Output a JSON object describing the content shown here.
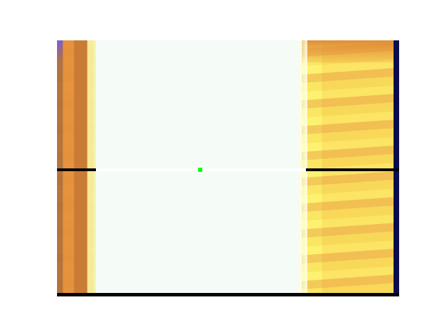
{
  "screen": {
    "background": "#ffffff",
    "image_colors": {
      "left_panel": "#c98232",
      "center_panel": "#f5fbf7",
      "right_panel": "#f3c94d",
      "divider_dark": "#000000",
      "divider_light": "#ffffff",
      "border_dark": "#0b0c4d",
      "cursor": "#00ff00"
    }
  }
}
